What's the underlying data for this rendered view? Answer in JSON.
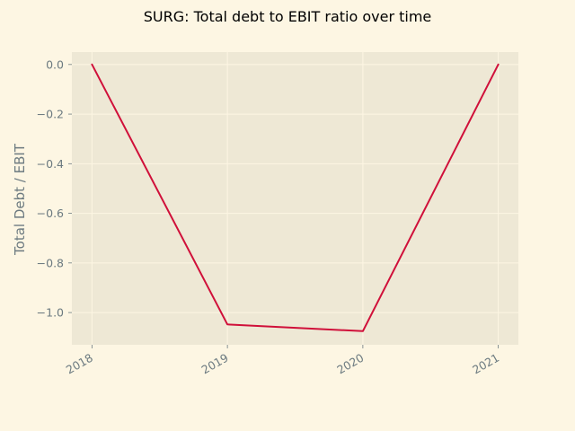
{
  "chart_data": {
    "type": "line",
    "title": "SURG: Total debt to EBIT ratio over time",
    "xlabel": "",
    "ylabel": "Total Debt / EBIT",
    "x": [
      "2018",
      "2019",
      "2020",
      "2021"
    ],
    "series": [
      {
        "values": [
          0.0,
          -1.048,
          -1.075,
          0.0
        ],
        "color": "#d0103a"
      }
    ],
    "ylim": [
      -1.13,
      0.05
    ],
    "yticks": [
      "0.0",
      "−0.2",
      "−0.4",
      "−0.6",
      "−0.8",
      "−1.0"
    ],
    "ytick_values": [
      0.0,
      -0.2,
      -0.4,
      -0.6,
      -0.8,
      -1.0
    ],
    "xtick_rotation": "30",
    "grid": true,
    "legend": "none",
    "colors": {
      "figure_background": "#fdf6e3",
      "axes_background": "#eee8d5",
      "grid": "#fdf6e3",
      "tick_text": "#6c7a80",
      "line": "#d0103a"
    }
  }
}
